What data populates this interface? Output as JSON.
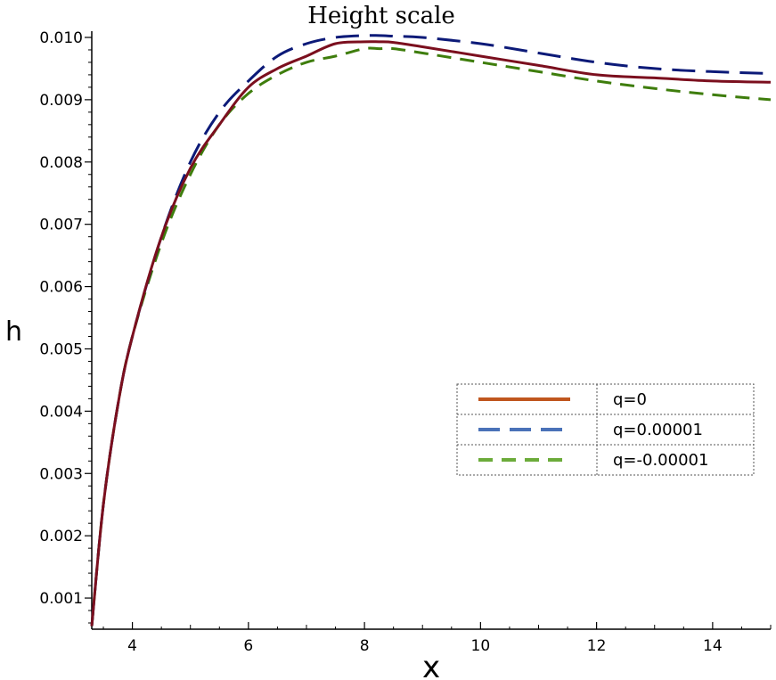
{
  "chart_data": {
    "type": "line",
    "title": "Height scale",
    "xlabel": "x",
    "ylabel": "h",
    "xlim": [
      3.3,
      15
    ],
    "ylim": [
      0.0005,
      0.0101
    ],
    "x_ticks": [
      4,
      6,
      8,
      10,
      12,
      14
    ],
    "x_tick_labels": [
      "4",
      "6",
      "8",
      "10",
      "12",
      "14"
    ],
    "y_ticks": [
      0.001,
      0.002,
      0.003,
      0.004,
      0.005,
      0.006,
      0.007,
      0.008,
      0.009,
      0.01
    ],
    "y_tick_labels": [
      "0.001",
      "0.002",
      "0.003",
      "0.004",
      "0.005",
      "0.006",
      "0.007",
      "0.008",
      "0.009",
      "0.010"
    ],
    "legend_position": "center-right",
    "grid": false,
    "series": [
      {
        "name": "q=0",
        "line_color": "#7b0f1e",
        "legend_color": "#c0561e",
        "dash": "solid",
        "x": [
          3.3,
          3.5,
          3.75,
          4.0,
          4.5,
          5.0,
          5.5,
          6.0,
          6.5,
          7.0,
          7.5,
          8.0,
          8.25,
          8.5,
          9.0,
          10.0,
          11.0,
          12.0,
          13.0,
          14.0,
          15.0
        ],
        "y": [
          0.00055,
          0.0025,
          0.0041,
          0.0052,
          0.0068,
          0.0079,
          0.0086,
          0.0092,
          0.0095,
          0.0097,
          0.0099,
          0.00993,
          0.00993,
          0.00992,
          0.00985,
          0.0097,
          0.00955,
          0.0094,
          0.00935,
          0.0093,
          0.00928
        ]
      },
      {
        "name": "q=0.00001",
        "line_color": "#0c1a78",
        "legend_color": "#4a72b8",
        "dash": "long-dash",
        "x": [
          3.3,
          3.5,
          3.75,
          4.0,
          4.5,
          5.0,
          5.5,
          6.0,
          6.5,
          7.0,
          7.5,
          8.0,
          8.25,
          8.5,
          9.0,
          10.0,
          11.0,
          12.0,
          13.0,
          14.0,
          15.0
        ],
        "y": [
          0.00055,
          0.0025,
          0.0041,
          0.0052,
          0.0068,
          0.008,
          0.0088,
          0.0093,
          0.0097,
          0.0099,
          0.01,
          0.01003,
          0.01003,
          0.01002,
          0.01,
          0.0099,
          0.00975,
          0.0096,
          0.0095,
          0.00945,
          0.00942
        ]
      },
      {
        "name": "q=-0.00001",
        "line_color": "#3e7d0c",
        "legend_color": "#6cab3a",
        "dash": "dash",
        "x": [
          3.3,
          3.5,
          3.75,
          4.0,
          4.5,
          5.0,
          5.5,
          6.0,
          6.5,
          7.0,
          7.5,
          8.0,
          8.25,
          8.5,
          9.0,
          10.0,
          11.0,
          12.0,
          13.0,
          14.0,
          15.0
        ],
        "y": [
          0.00055,
          0.0025,
          0.0041,
          0.0052,
          0.0067,
          0.0078,
          0.0086,
          0.0091,
          0.0094,
          0.0096,
          0.0097,
          0.00982,
          0.00982,
          0.00982,
          0.00975,
          0.0096,
          0.00945,
          0.0093,
          0.00918,
          0.00908,
          0.009
        ]
      }
    ]
  }
}
